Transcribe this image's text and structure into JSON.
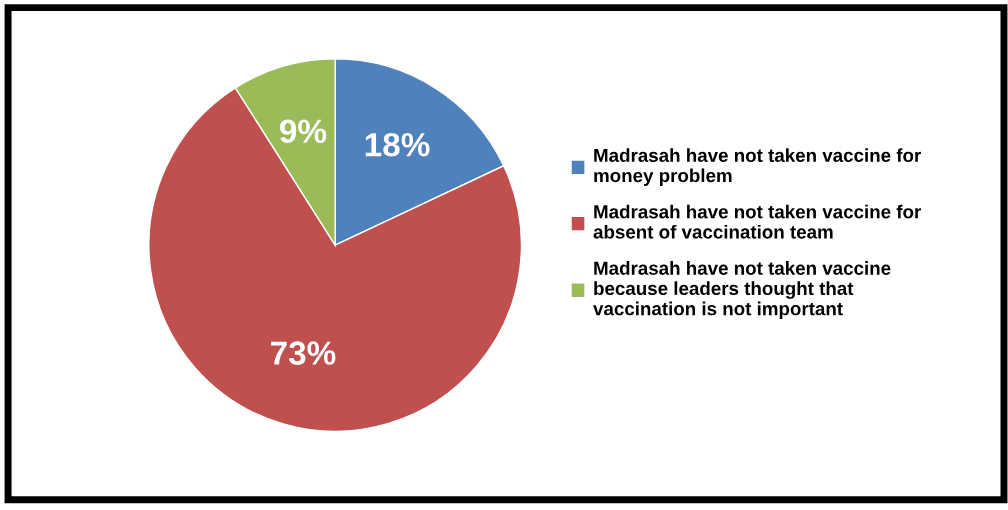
{
  "chart_data": {
    "type": "pie",
    "categories": [
      "Madrasah have not taken vaccine for\nmoney problem",
      "Madrasah have not taken vaccine for\nabsent of vaccination team",
      "Madrasah have not taken vaccine\nbecause leaders thought that\nvaccination is not important"
    ],
    "values": [
      18,
      73,
      9
    ],
    "colors": [
      "#4f81bd",
      "#c0504d",
      "#9bbb59"
    ],
    "value_labels": [
      "18%",
      "73%",
      "9%"
    ],
    "legend": "right"
  }
}
